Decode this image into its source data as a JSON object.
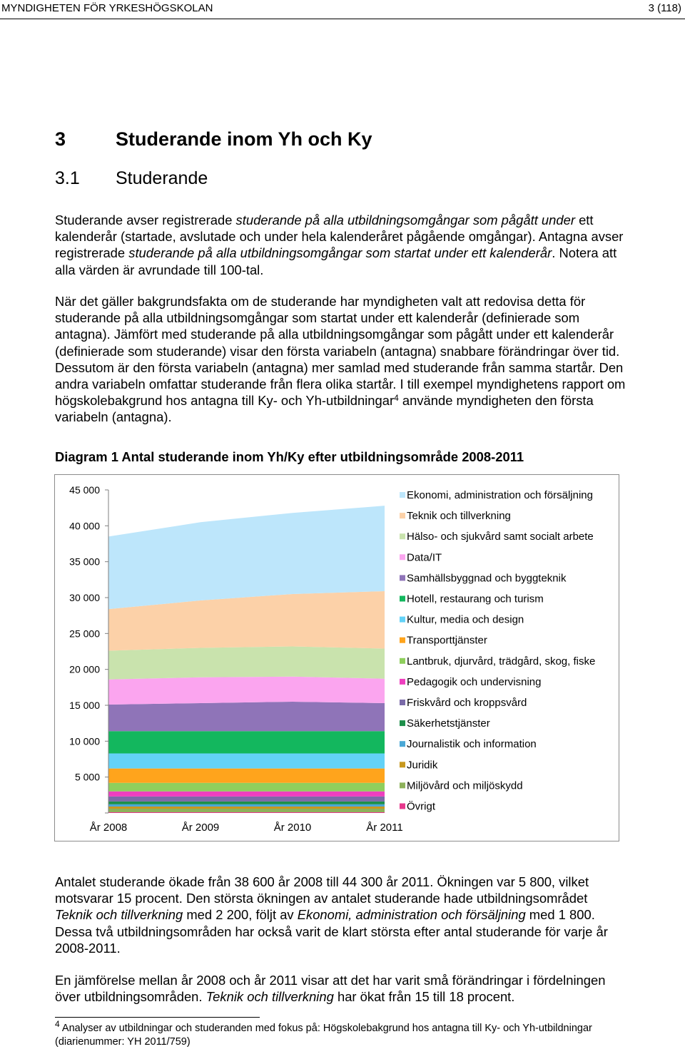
{
  "header": {
    "organization": "MYNDIGHETEN FÖR YRKESHÖGSKOLAN",
    "page": "3 (118)"
  },
  "heading1": {
    "number": "3",
    "title": "Studerande inom Yh och Ky"
  },
  "heading2": {
    "number": "3.1",
    "title": "Studerande"
  },
  "intro": {
    "t1": "Studerande avser registrerade ",
    "t2": "studerande på alla utbildningsomgångar som pågått under",
    "t3": " ett kalenderår (startade, avslutade och under hela kalenderåret pågående omgångar). Antagna avser registrerade ",
    "t4": "studerande på alla utbildningsomgångar som startat under ett kalenderår",
    "t5": ". Notera att alla värden är avrundade till 100-tal."
  },
  "background": {
    "text": "När det gäller bakgrundsfakta om de studerande har myndigheten valt att redovisa detta för studerande på alla utbildningsomgångar som startat under ett kalenderår (definierade som antagna). Jämfört med studerande på alla utbildningsomgångar som pågått under ett kalenderår (definierade som studerande) visar den första variabeln (antagna) snabbare förändringar över tid. Dessutom är den första variabeln (antagna) mer samlad med studerande från samma startår. Den andra variabeln omfattar studerande från flera olika startår. I till exempel myndighetens rapport om högskolebakgrund hos antagna till Ky- och Yh-utbildningar",
    "footnote_ref": "4",
    "text_end": " använde myndigheten den första variabeln (antagna)."
  },
  "diagram": {
    "title": "Diagram 1 Antal studerande inom Yh/Ky efter utbildningsområde 2008-2011"
  },
  "chart_data": {
    "type": "area",
    "stacked": true,
    "categories": [
      "År 2008",
      "År 2009",
      "År 2010",
      "År 2011"
    ],
    "ylim": [
      0,
      45000
    ],
    "yticks": [
      5000,
      10000,
      15000,
      20000,
      25000,
      30000,
      35000,
      40000,
      45000
    ],
    "ytick_labels": [
      "5 000",
      "10 000",
      "15 000",
      "20 000",
      "25 000",
      "30 000",
      "35 000",
      "40 000",
      "45 000"
    ],
    "grid": false,
    "legend": "right",
    "series": [
      {
        "name": "Övrigt",
        "color": "#e6388c",
        "values": [
          100,
          100,
          100,
          100
        ]
      },
      {
        "name": "Miljövård och miljöskydd",
        "color": "#8db15a",
        "values": [
          500,
          500,
          500,
          500
        ]
      },
      {
        "name": "Juridik",
        "color": "#c8981e",
        "values": [
          300,
          300,
          300,
          300
        ]
      },
      {
        "name": "Journalistik och information",
        "color": "#4aa8d6",
        "values": [
          300,
          300,
          300,
          300
        ]
      },
      {
        "name": "Säkerhetstjänster",
        "color": "#1d8f4a",
        "values": [
          400,
          400,
          400,
          400
        ]
      },
      {
        "name": "Friskvård och kroppsvård",
        "color": "#7a6aa8",
        "values": [
          700,
          700,
          700,
          700
        ]
      },
      {
        "name": "Pedagogik och undervisning",
        "color": "#ee3fbf",
        "values": [
          700,
          700,
          700,
          700
        ]
      },
      {
        "name": "Lantbruk, djurvård, trädgård, skog, fiske",
        "color": "#8fcf5d",
        "values": [
          1200,
          1200,
          1200,
          1200
        ]
      },
      {
        "name": "Transporttjänster",
        "color": "#ffa41c",
        "values": [
          2000,
          2000,
          2000,
          2000
        ]
      },
      {
        "name": "Kultur, media och design",
        "color": "#63d2f7",
        "values": [
          2100,
          2100,
          2100,
          2100
        ]
      },
      {
        "name": "Hotell, restaurang och turism",
        "color": "#13b75e",
        "values": [
          3100,
          3100,
          3100,
          3100
        ]
      },
      {
        "name": "Samhällsbyggnad och byggteknik",
        "color": "#8f74b8",
        "values": [
          3700,
          3900,
          4100,
          3900
        ]
      },
      {
        "name": "Data/IT",
        "color": "#fba5ef",
        "values": [
          3500,
          3600,
          3500,
          3400
        ]
      },
      {
        "name": "Hälso- och sjukvård samt socialt arbete",
        "color": "#c9e3ad",
        "values": [
          4000,
          4100,
          4200,
          4200
        ]
      },
      {
        "name": "Teknik och tillverkning",
        "color": "#fcd1a8",
        "values": [
          5800,
          6600,
          7300,
          8000
        ]
      },
      {
        "name": "Ekonomi, administration och försäljning",
        "color": "#bde6fb",
        "values": [
          10100,
          10900,
          11300,
          11900
        ]
      }
    ]
  },
  "summary": {
    "t1": "Antalet studerande ökade från 38 600 år 2008 till 44 300 år 2011. Ökningen var 5 800, vilket motsvarar 15 procent. Den största ökningen av antalet studerande hade utbildningsområdet ",
    "t2": "Teknik och tillverkning",
    "t3": " med 2 200, följt av ",
    "t4": "Ekonomi, administration och försäljning",
    "t5": " med 1 800. Dessa två utbildningsområden har också varit de klart största efter antal studerande för varje år 2008-2011."
  },
  "comparison": {
    "t1": "En jämförelse mellan år 2008 och år 2011 visar att det har varit små förändringar i fördelningen över utbildningsområden. ",
    "t2": "Teknik och tillverkning",
    "t3": " har ökat från 15 till 18 procent."
  },
  "footnote": {
    "number": "4",
    "text": "Analyser av utbildningar och studeranden med fokus på: Högskolebakgrund hos antagna till Ky- och Yh-utbildningar (diarienummer: YH 2011/759)"
  }
}
